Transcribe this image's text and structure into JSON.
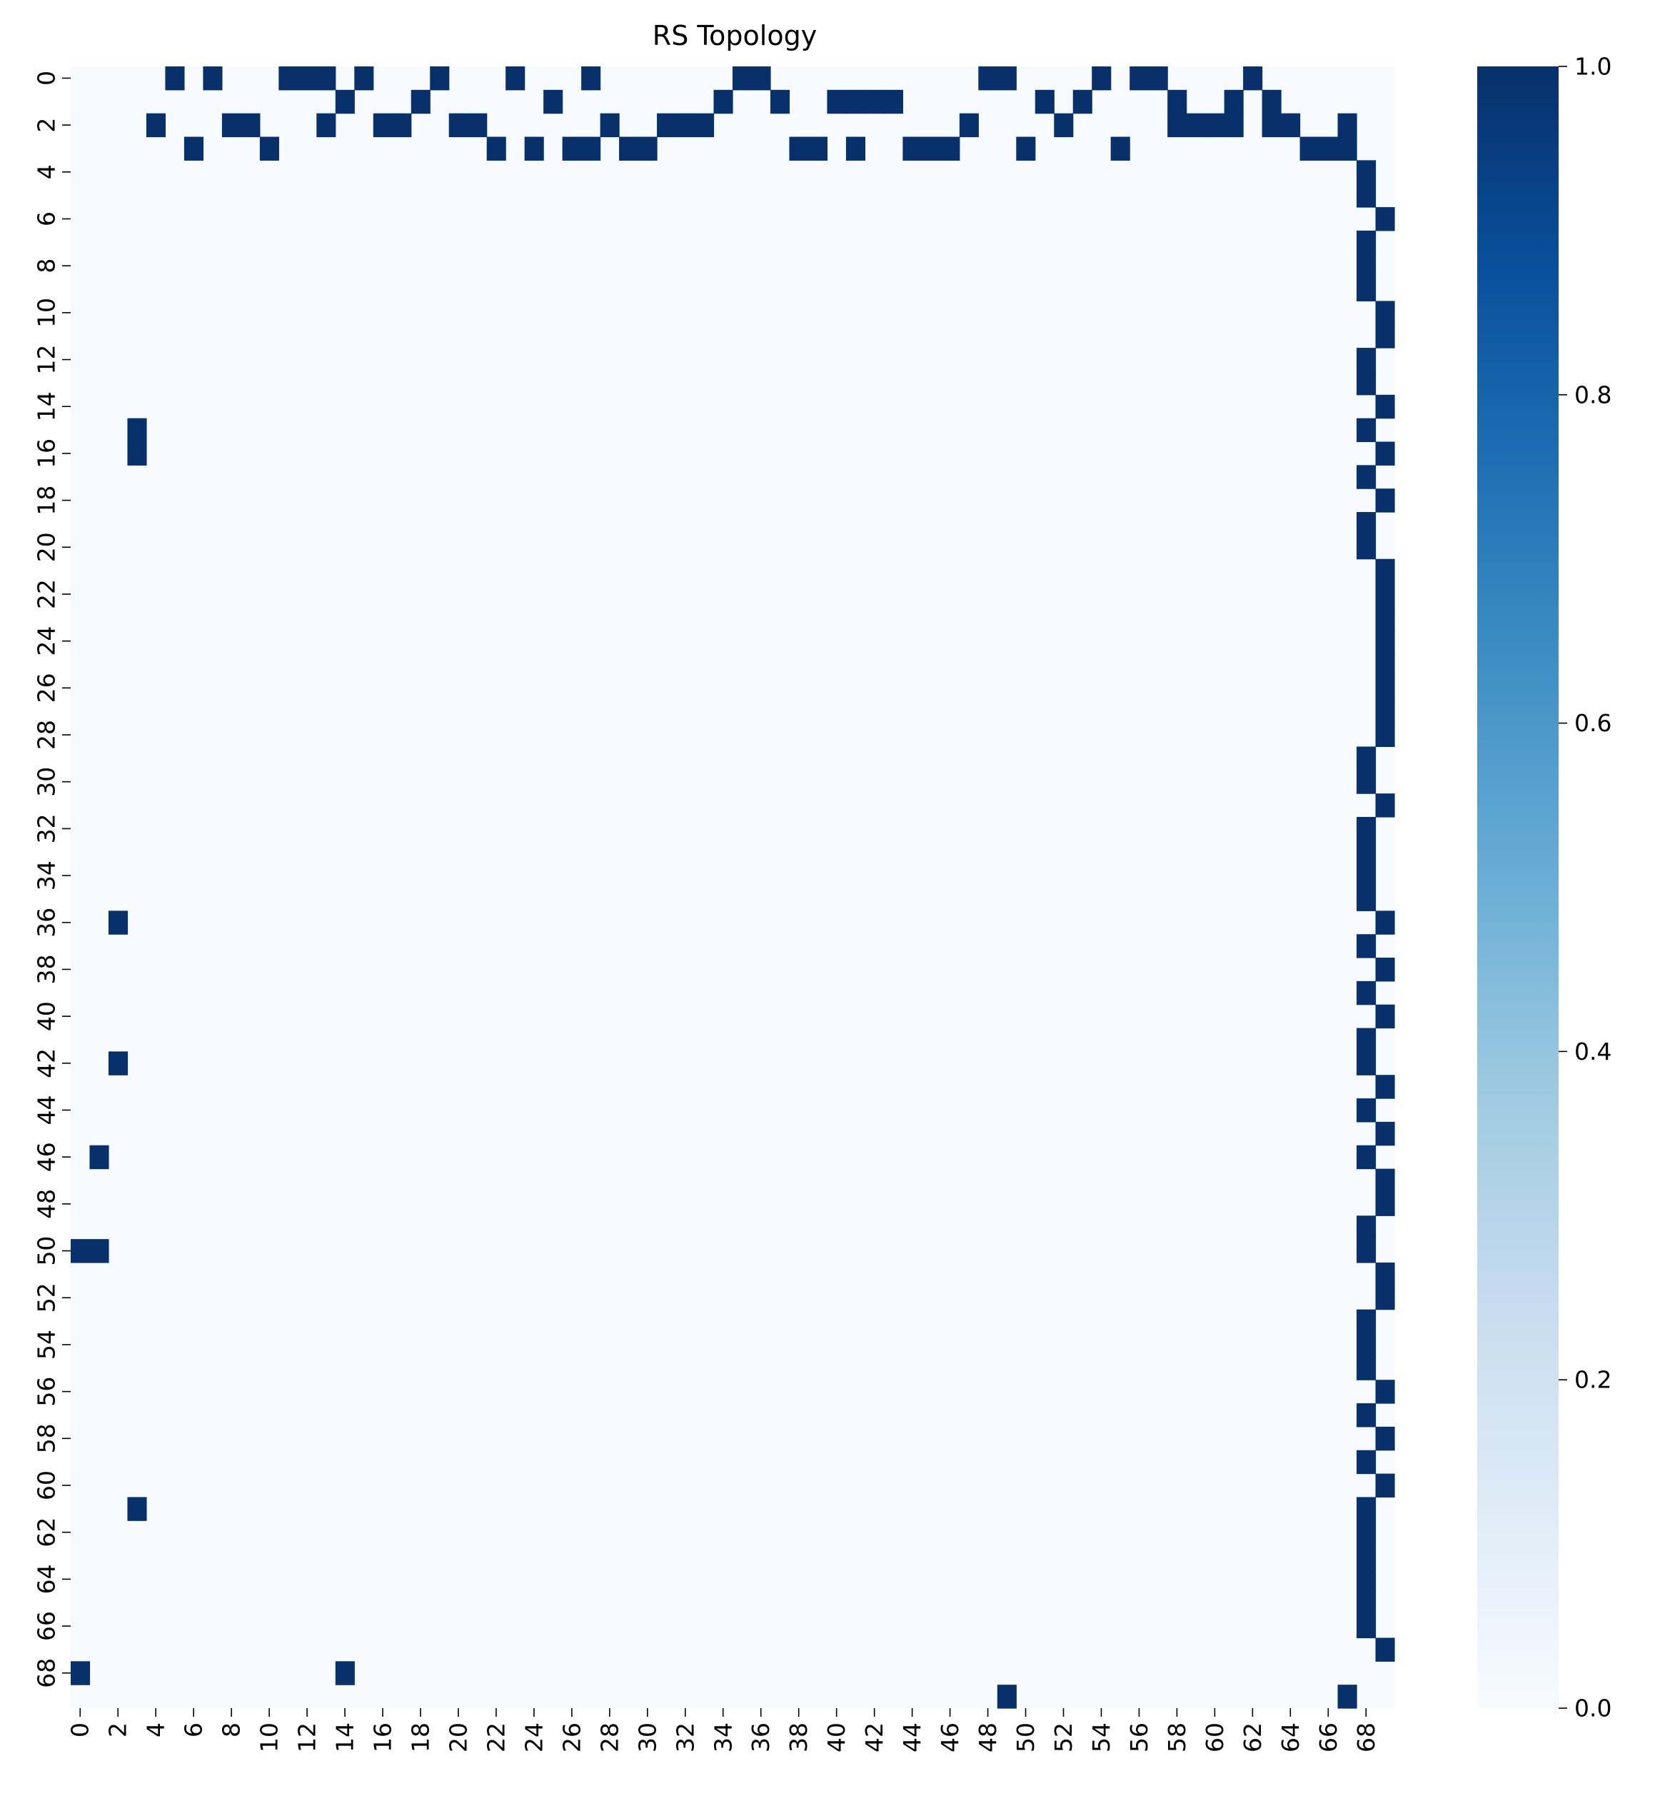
{
  "chart_data": {
    "type": "heatmap",
    "title": "RS Topology",
    "xlabel": "",
    "ylabel": "",
    "n_rows": 70,
    "n_cols": 70,
    "x_tick_labels": [
      "0",
      "2",
      "4",
      "6",
      "8",
      "10",
      "12",
      "14",
      "16",
      "18",
      "20",
      "22",
      "24",
      "26",
      "28",
      "30",
      "32",
      "34",
      "36",
      "38",
      "40",
      "42",
      "44",
      "46",
      "48",
      "50",
      "52",
      "54",
      "56",
      "58",
      "60",
      "62",
      "64",
      "66",
      "68"
    ],
    "y_tick_labels": [
      "0",
      "2",
      "4",
      "6",
      "8",
      "10",
      "12",
      "14",
      "16",
      "18",
      "20",
      "22",
      "24",
      "26",
      "28",
      "30",
      "32",
      "34",
      "36",
      "38",
      "40",
      "42",
      "44",
      "46",
      "48",
      "50",
      "52",
      "54",
      "56",
      "58",
      "60",
      "62",
      "64",
      "66",
      "68"
    ],
    "value_range": [
      0,
      1
    ],
    "colorbar": {
      "ticks": [
        "0.0",
        "0.2",
        "0.4",
        "0.6",
        "0.8",
        "1.0"
      ],
      "colormap": "Blues",
      "stops": [
        "#f7fbff",
        "#deebf7",
        "#c6dbef",
        "#9ecae1",
        "#6baed6",
        "#4292c6",
        "#2171b5",
        "#08519c",
        "#08306b"
      ]
    },
    "cells_value_1": [
      [
        0,
        5
      ],
      [
        0,
        7
      ],
      [
        0,
        11
      ],
      [
        0,
        12
      ],
      [
        0,
        13
      ],
      [
        0,
        15
      ],
      [
        0,
        19
      ],
      [
        0,
        23
      ],
      [
        0,
        27
      ],
      [
        0,
        35
      ],
      [
        0,
        36
      ],
      [
        0,
        48
      ],
      [
        0,
        49
      ],
      [
        0,
        54
      ],
      [
        0,
        56
      ],
      [
        0,
        57
      ],
      [
        0,
        62
      ],
      [
        1,
        14
      ],
      [
        1,
        18
      ],
      [
        1,
        25
      ],
      [
        1,
        34
      ],
      [
        1,
        37
      ],
      [
        1,
        40
      ],
      [
        1,
        41
      ],
      [
        1,
        42
      ],
      [
        1,
        43
      ],
      [
        1,
        51
      ],
      [
        1,
        53
      ],
      [
        1,
        58
      ],
      [
        1,
        61
      ],
      [
        1,
        63
      ],
      [
        2,
        4
      ],
      [
        2,
        8
      ],
      [
        2,
        9
      ],
      [
        2,
        13
      ],
      [
        2,
        16
      ],
      [
        2,
        17
      ],
      [
        2,
        20
      ],
      [
        2,
        21
      ],
      [
        2,
        28
      ],
      [
        2,
        31
      ],
      [
        2,
        32
      ],
      [
        2,
        33
      ],
      [
        2,
        47
      ],
      [
        2,
        52
      ],
      [
        2,
        58
      ],
      [
        2,
        59
      ],
      [
        2,
        60
      ],
      [
        2,
        61
      ],
      [
        2,
        63
      ],
      [
        2,
        64
      ],
      [
        2,
        67
      ],
      [
        3,
        6
      ],
      [
        3,
        10
      ],
      [
        3,
        22
      ],
      [
        3,
        24
      ],
      [
        3,
        26
      ],
      [
        3,
        27
      ],
      [
        3,
        29
      ],
      [
        3,
        30
      ],
      [
        3,
        38
      ],
      [
        3,
        39
      ],
      [
        3,
        41
      ],
      [
        3,
        44
      ],
      [
        3,
        45
      ],
      [
        3,
        46
      ],
      [
        3,
        50
      ],
      [
        3,
        55
      ],
      [
        3,
        65
      ],
      [
        3,
        66
      ],
      [
        3,
        67
      ],
      [
        4,
        68
      ],
      [
        5,
        68
      ],
      [
        6,
        69
      ],
      [
        7,
        68
      ],
      [
        8,
        68
      ],
      [
        9,
        68
      ],
      [
        10,
        69
      ],
      [
        11,
        69
      ],
      [
        12,
        68
      ],
      [
        13,
        68
      ],
      [
        14,
        69
      ],
      [
        15,
        3
      ],
      [
        15,
        68
      ],
      [
        16,
        3
      ],
      [
        16,
        69
      ],
      [
        17,
        68
      ],
      [
        18,
        69
      ],
      [
        19,
        68
      ],
      [
        20,
        68
      ],
      [
        21,
        69
      ],
      [
        22,
        69
      ],
      [
        23,
        69
      ],
      [
        24,
        69
      ],
      [
        25,
        69
      ],
      [
        26,
        69
      ],
      [
        27,
        69
      ],
      [
        28,
        69
      ],
      [
        29,
        68
      ],
      [
        30,
        68
      ],
      [
        31,
        69
      ],
      [
        32,
        68
      ],
      [
        33,
        68
      ],
      [
        34,
        68
      ],
      [
        35,
        68
      ],
      [
        36,
        2
      ],
      [
        36,
        69
      ],
      [
        37,
        68
      ],
      [
        38,
        69
      ],
      [
        39,
        68
      ],
      [
        40,
        69
      ],
      [
        41,
        68
      ],
      [
        42,
        2
      ],
      [
        42,
        68
      ],
      [
        43,
        69
      ],
      [
        44,
        68
      ],
      [
        45,
        69
      ],
      [
        46,
        1
      ],
      [
        46,
        68
      ],
      [
        47,
        69
      ],
      [
        48,
        69
      ],
      [
        49,
        68
      ],
      [
        50,
        0
      ],
      [
        50,
        1
      ],
      [
        50,
        68
      ],
      [
        51,
        69
      ],
      [
        52,
        69
      ],
      [
        53,
        68
      ],
      [
        54,
        68
      ],
      [
        55,
        68
      ],
      [
        56,
        69
      ],
      [
        57,
        68
      ],
      [
        58,
        69
      ],
      [
        59,
        68
      ],
      [
        60,
        69
      ],
      [
        61,
        3
      ],
      [
        61,
        68
      ],
      [
        62,
        68
      ],
      [
        63,
        68
      ],
      [
        64,
        68
      ],
      [
        65,
        68
      ],
      [
        66,
        68
      ],
      [
        67,
        69
      ],
      [
        68,
        0
      ],
      [
        68,
        14
      ],
      [
        69,
        49
      ],
      [
        69,
        67
      ]
    ]
  }
}
